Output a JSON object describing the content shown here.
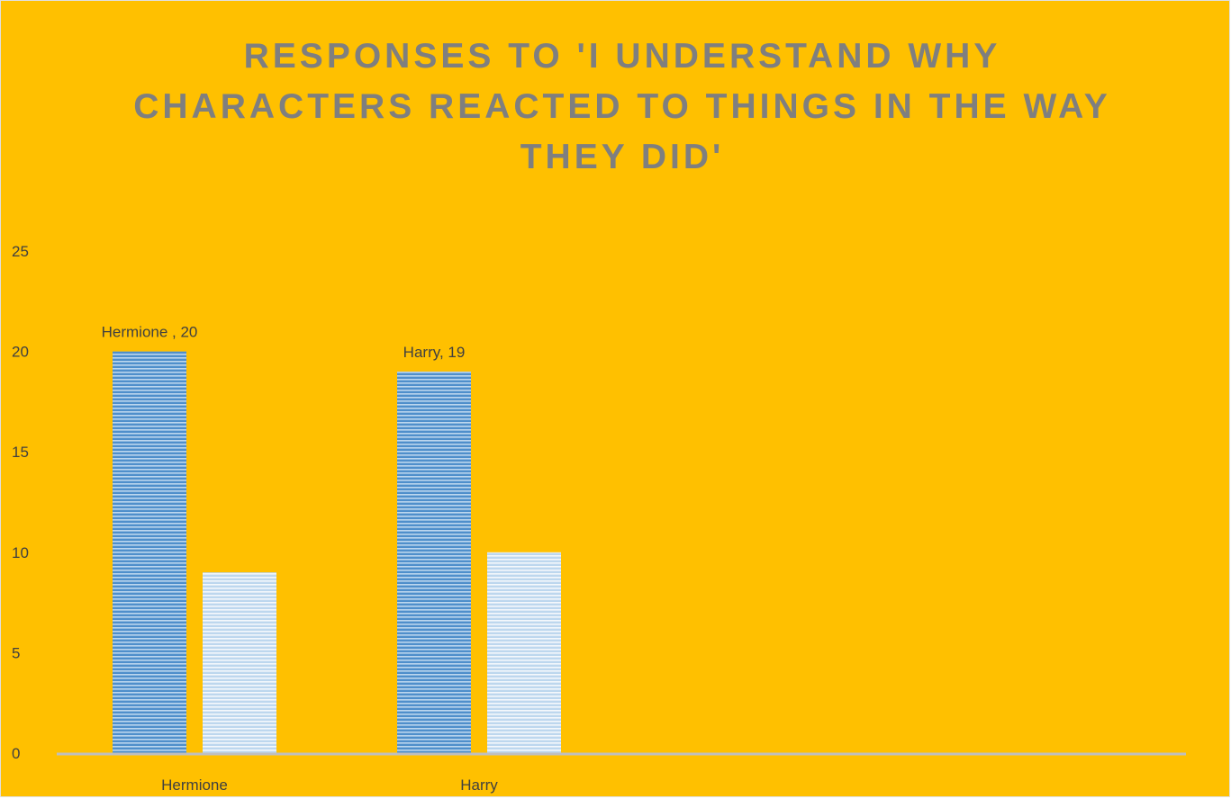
{
  "chart_data": {
    "type": "bar",
    "title": "RESPONSES TO 'I UNDERSTAND WHY CHARACTERS REACTED TO THINGS IN THE WAY THEY DID'",
    "xlabel": "",
    "ylabel": "",
    "categories": [
      "Hermione",
      "Harry"
    ],
    "series": [
      {
        "values": [
          20,
          19
        ],
        "data_labels": [
          "Hermione , 20",
          "Harry, 19"
        ],
        "color": "#5B9BD5"
      },
      {
        "values": [
          9,
          10
        ],
        "data_labels": [
          "",
          ""
        ],
        "color": "#BDD7EE"
      }
    ],
    "ylim": [
      0,
      25
    ],
    "yticks": [
      "0",
      "5",
      "10",
      "15",
      "20",
      "25"
    ],
    "grid": false,
    "legend": "none",
    "colors": {
      "background": "#FFC000",
      "title": "#7F7F7F",
      "axis": "#BFBFBF"
    }
  }
}
